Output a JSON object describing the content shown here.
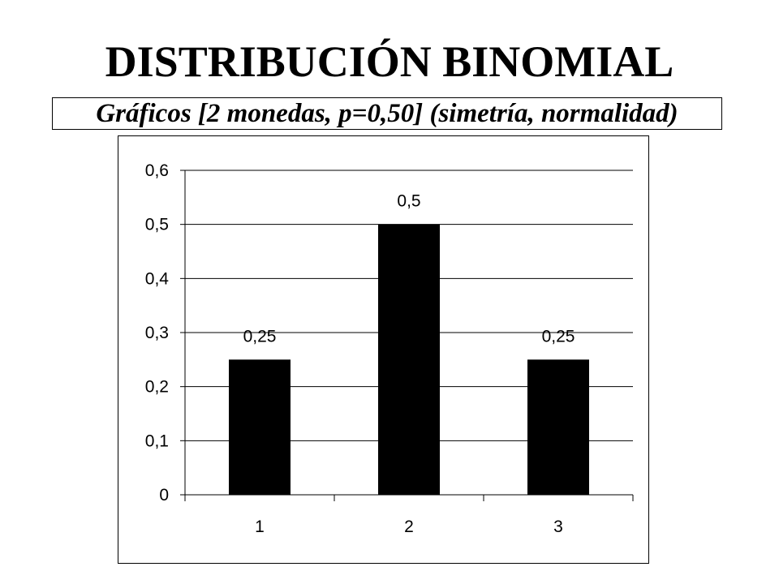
{
  "slide": {
    "title": "DISTRIBUCIÓN BINOMIAL",
    "subtitle": "Gráficos [2 monedas, p=0,50] (simetría, normalidad)"
  },
  "chart_data": {
    "type": "bar",
    "categories": [
      "1",
      "2",
      "3"
    ],
    "values": [
      0.25,
      0.5,
      0.25
    ],
    "data_labels": [
      "0,25",
      "0,5",
      "0,25"
    ],
    "y_ticks": [
      "0",
      "0,1",
      "0,2",
      "0,3",
      "0,4",
      "0,5",
      "0,6"
    ],
    "y_tick_values": [
      0,
      0.1,
      0.2,
      0.3,
      0.4,
      0.5,
      0.6
    ],
    "ylim": [
      0,
      0.6
    ],
    "title": "",
    "xlabel": "",
    "ylabel": "",
    "grid": true,
    "legend": "none",
    "bar_color": "#000000",
    "grid_color": "#000000"
  }
}
